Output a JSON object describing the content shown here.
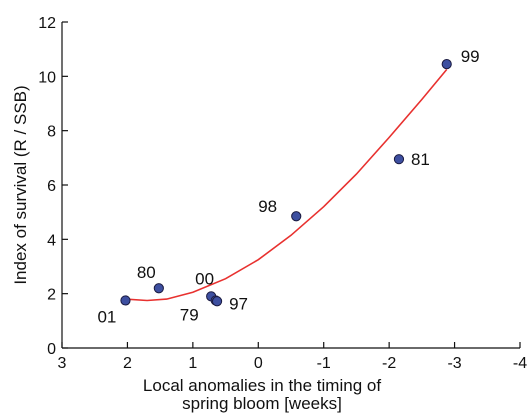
{
  "chart_data": {
    "type": "scatter",
    "xlabel_lines": [
      "Local anomalies in the timing of",
      "spring bloom [weeks]"
    ],
    "ylabel": "Index of survival (R / SSB)",
    "xlim": [
      3,
      -4
    ],
    "ylim": [
      0,
      12
    ],
    "x_reversed": true,
    "x_ticks": [
      3,
      2,
      1,
      0,
      -1,
      -2,
      -3,
      -4
    ],
    "x_tick_labels": [
      "3",
      "2",
      "1",
      "0",
      "-1",
      "-2",
      "-3",
      "-4"
    ],
    "y_ticks": [
      0,
      2,
      4,
      6,
      8,
      10,
      12
    ],
    "y_tick_labels": [
      "0",
      "2",
      "4",
      "6",
      "8",
      "10",
      "12"
    ],
    "grid": false,
    "point_color": "#3d4fa0",
    "fit_color": "#e8312f",
    "points": [
      {
        "label": "01",
        "x": 2.03,
        "y": 1.75
      },
      {
        "label": "80",
        "x": 1.52,
        "y": 2.2
      },
      {
        "label": "00",
        "x": 0.72,
        "y": 1.9
      },
      {
        "label": "79",
        "x": 0.65,
        "y": 1.75
      },
      {
        "label": "97",
        "x": 0.63,
        "y": 1.72
      },
      {
        "label": "98",
        "x": -0.58,
        "y": 4.85
      },
      {
        "label": "81",
        "x": -2.15,
        "y": 6.95
      },
      {
        "label": "99",
        "x": -2.88,
        "y": 10.45
      }
    ],
    "fit_curve": {
      "x": [
        2.03,
        1.7,
        1.4,
        1.0,
        0.5,
        0.0,
        -0.5,
        -1.0,
        -1.5,
        -2.0,
        -2.5,
        -2.88
      ],
      "y": [
        1.8,
        1.75,
        1.8,
        2.05,
        2.55,
        3.25,
        4.15,
        5.2,
        6.4,
        7.75,
        9.15,
        10.25
      ]
    }
  }
}
